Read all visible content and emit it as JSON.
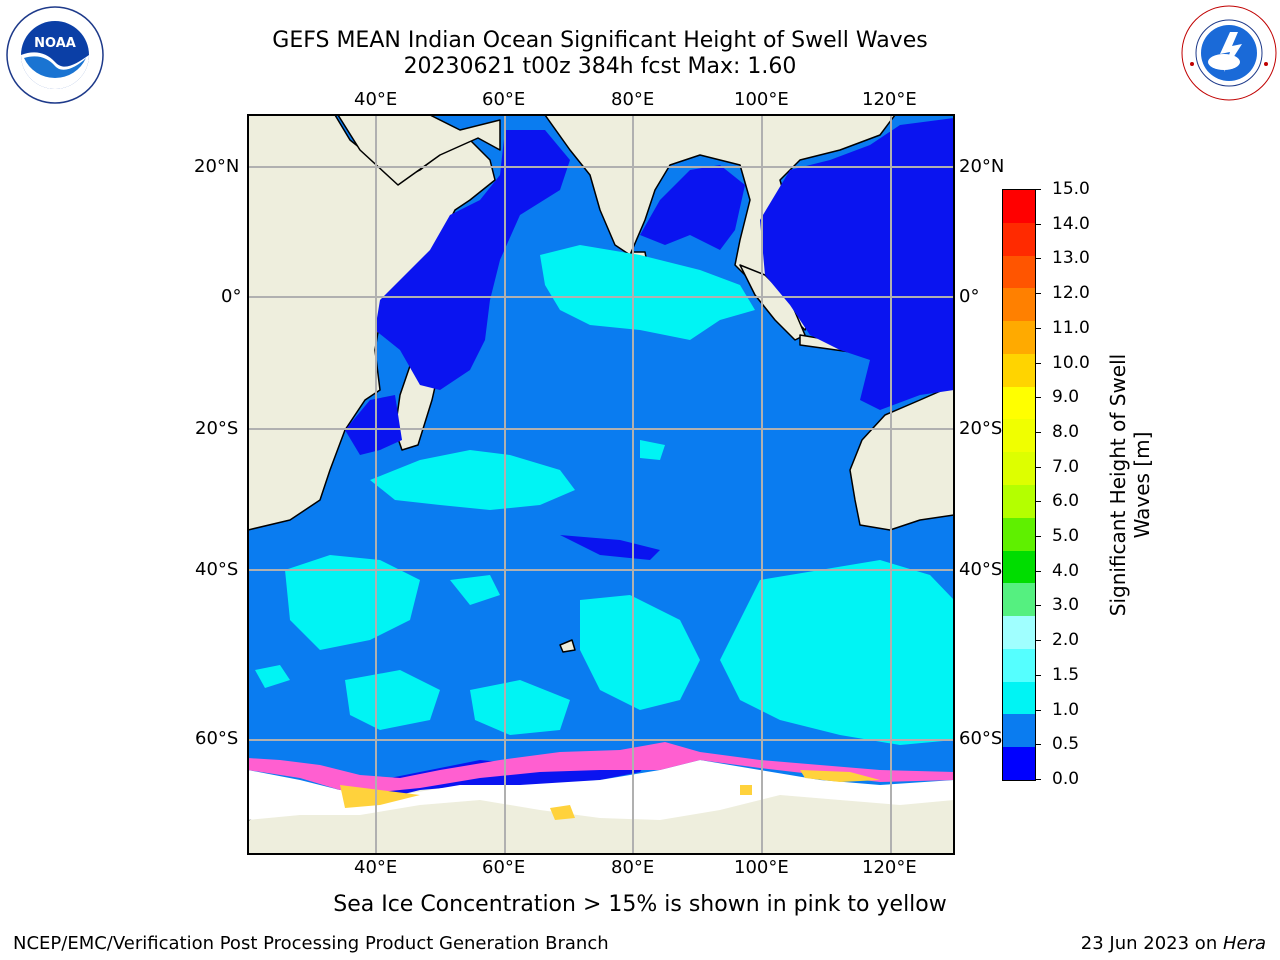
{
  "header": {
    "title_line1": "GEFS MEAN Indian Ocean Significant Height of Swell Waves",
    "title_line2": "20230621 t00z 384h fcst   Max: 1.60"
  },
  "logos": {
    "left_text": "NOAA",
    "left_ring_text": "NATIONAL OCEANIC AND ATMOSPHERIC ADMINISTRATION · U.S. DEPARTMENT OF COMMERCE",
    "right_ring_text": "NATIONAL WEATHER SERVICE"
  },
  "map": {
    "lon_labels": [
      "40°E",
      "60°E",
      "80°E",
      "100°E",
      "120°E"
    ],
    "lat_labels": [
      "20°N",
      "0°",
      "20°S",
      "40°S",
      "60°S"
    ],
    "colors": {
      "land": "#eeeedd",
      "ocean_main": "#0a7cf0",
      "ocean_low": "#0a14f0",
      "ocean_high": "#00f4f4",
      "ice_pink": "#ff5fd0",
      "ice_yellow": "#ffd23c",
      "grid": "#b0b0b0"
    }
  },
  "colorbar": {
    "ticks": [
      "15.0",
      "14.0",
      "13.0",
      "12.0",
      "11.0",
      "10.0",
      "9.0",
      "8.0",
      "7.0",
      "6.0",
      "5.0",
      "4.0",
      "3.0",
      "2.0",
      "1.5",
      "1.0",
      "0.5",
      "0.0"
    ],
    "label_line1": "Significant Height of Swell",
    "label_line2": "Waves [m]",
    "colors": [
      "#ff0000",
      "#ff2a00",
      "#ff5500",
      "#ff8000",
      "#ffaa00",
      "#ffd400",
      "#ffff00",
      "#f0ff00",
      "#ddff00",
      "#b4ff00",
      "#5ff000",
      "#00dd00",
      "#55f080",
      "#a0ffff",
      "#55ffff",
      "#00f4f4",
      "#0a7cf0",
      "#0000ff"
    ]
  },
  "note": "Sea Ice Concentration > 15% is shown in pink to yellow",
  "footer": {
    "left": "NCEP/EMC/Verification Post Processing Product Generation Branch",
    "right_date": "23 Jun 2023 on ",
    "right_host": "Hera"
  }
}
